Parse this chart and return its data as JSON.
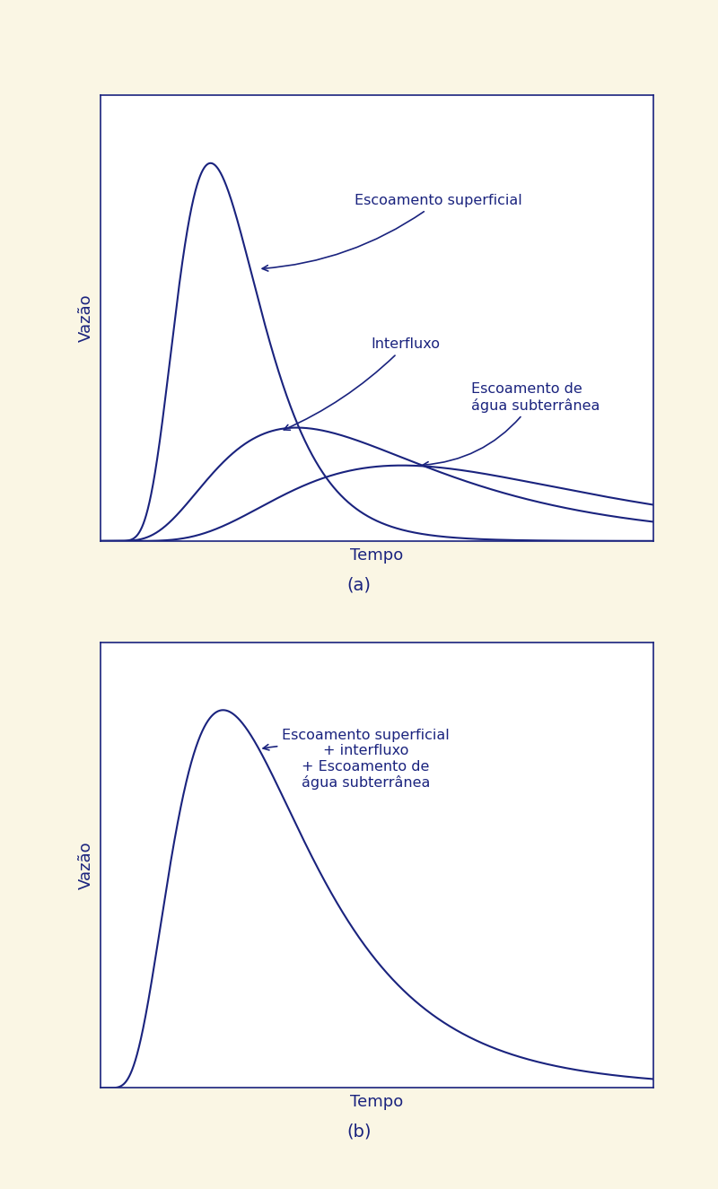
{
  "bg_color": "#faf6e4",
  "plot_bg_color": "#ffffff",
  "line_color": "#1a237e",
  "text_color": "#1a237e",
  "fig_width": 8.0,
  "fig_height": 13.25,
  "xlabel_a": "Tempo",
  "ylabel_a": "Vazão",
  "xlabel_b": "Tempo",
  "ylabel_b": "Vazão",
  "label_a": "(a)",
  "label_b": "(b)",
  "annotation_superficial": "Escoamento superficial",
  "annotation_interfluxo": "Interfluxo",
  "annotation_subterranea": "Escoamento de\nágua subterrânea",
  "annotation_combined": "Escoamento superficial\n+ interfluxo\n+ Escoamento de\nágua subterrânea",
  "font_size_axis_label": 13,
  "font_size_annotation": 11.5,
  "font_size_panel_label": 14
}
